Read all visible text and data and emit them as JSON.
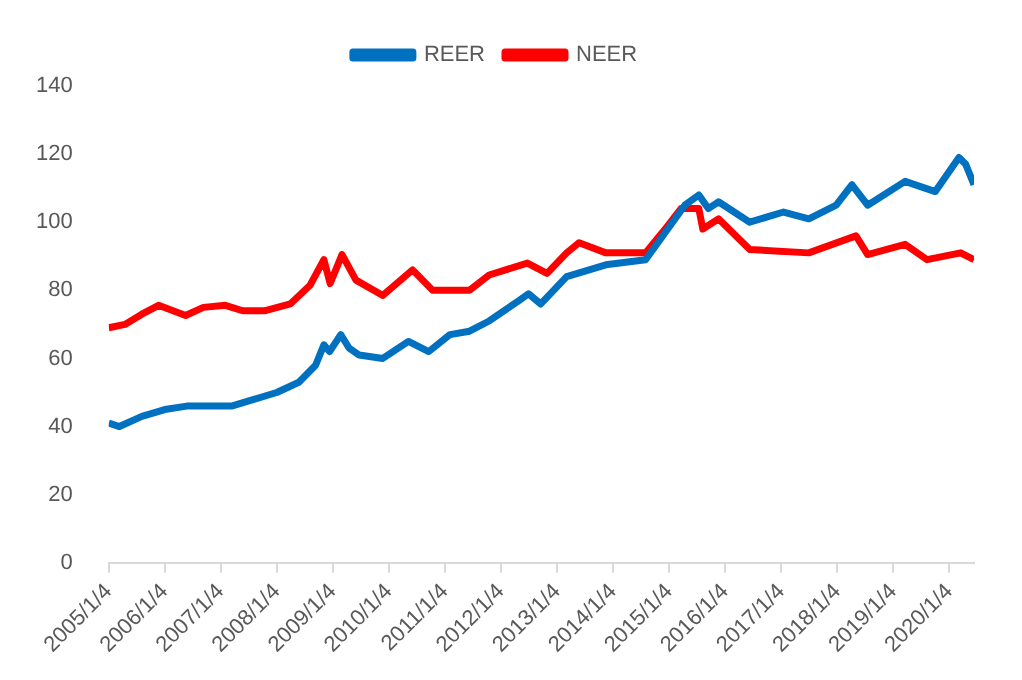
{
  "chart_data": {
    "type": "line",
    "legend": "top",
    "grid": false,
    "marker": "none",
    "line_style": "solid",
    "xlim": [
      "2005-01-04",
      "2020-06-12"
    ],
    "xticks": [
      {
        "value": "2005-01-04",
        "label": "2005/1/4"
      },
      {
        "value": "2006-01-04",
        "label": "2006/1/4"
      },
      {
        "value": "2007-01-04",
        "label": "2007/1/4"
      },
      {
        "value": "2008-01-04",
        "label": "2008/1/4"
      },
      {
        "value": "2009-01-04",
        "label": "2009/1/4"
      },
      {
        "value": "2010-01-04",
        "label": "2010/1/4"
      },
      {
        "value": "2011-01-04",
        "label": "2011/1/4"
      },
      {
        "value": "2012-01-04",
        "label": "2012/1/4"
      },
      {
        "value": "2013-01-04",
        "label": "2013/1/4"
      },
      {
        "value": "2014-01-04",
        "label": "2014/1/4"
      },
      {
        "value": "2015-01-04",
        "label": "2015/1/4"
      },
      {
        "value": "2016-01-04",
        "label": "2016/1/4"
      },
      {
        "value": "2017-01-04",
        "label": "2017/1/4"
      },
      {
        "value": "2018-01-04",
        "label": "2018/1/4"
      },
      {
        "value": "2019-01-04",
        "label": "2019/1/4"
      },
      {
        "value": "2020-01-04",
        "label": "2020/1/4"
      }
    ],
    "ylim": [
      0,
      140
    ],
    "yticks": [
      0,
      20,
      40,
      60,
      80,
      100,
      120,
      140
    ],
    "series": [
      {
        "name": "REER",
        "color": "#0070c0",
        "x": [
          "2005-01-04",
          "2005-03-15",
          "2005-08-08",
          "2006-01-04",
          "2006-05-27",
          "2006-10-19",
          "2007-03-15",
          "2007-08-08",
          "2008-01-04",
          "2008-05-27",
          "2008-09-13",
          "2008-11-06",
          "2008-12-13",
          "2009-02-24",
          "2009-04-20",
          "2009-06-24",
          "2009-11-25",
          "2010-05-11",
          "2010-09-20",
          "2011-02-06",
          "2011-06-13",
          "2011-10-19",
          "2012-04-30",
          "2012-07-01",
          "2012-09-19",
          "2013-03-07",
          "2013-11-17",
          "2014-08-03",
          "2014-12-09",
          "2015-04-16",
          "2015-07-16",
          "2015-09-16",
          "2015-11-21",
          "2016-06-12",
          "2017-01-18",
          "2017-07-02",
          "2017-12-27",
          "2018-04-09",
          "2018-07-20",
          "2019-03-21",
          "2019-10-04",
          "2020-03-06",
          "2020-04-19",
          "2020-06-12"
        ],
        "values": [
          41,
          40,
          43,
          45,
          46,
          46,
          46,
          48,
          50,
          53,
          58,
          64,
          62,
          67,
          63,
          61,
          60,
          65,
          62,
          67,
          68,
          71,
          77,
          79,
          76,
          84,
          87.5,
          89,
          97,
          105,
          108,
          104,
          106,
          100,
          103,
          101,
          105,
          111,
          105,
          112,
          109,
          119,
          117,
          111
        ]
      },
      {
        "name": "NEER",
        "color": "#ff0000",
        "x": [
          "2005-01-04",
          "2005-04-20",
          "2005-08-08",
          "2005-11-25",
          "2006-05-20",
          "2006-09-13",
          "2007-02-03",
          "2007-05-27",
          "2007-10-16",
          "2008-04-01",
          "2008-08-08",
          "2008-11-06",
          "2008-12-17",
          "2009-03-04",
          "2009-06-03",
          "2009-11-25",
          "2010-06-07",
          "2010-10-16",
          "2011-06-13",
          "2011-10-19",
          "2012-06-24",
          "2012-10-30",
          "2013-03-07",
          "2013-05-27",
          "2013-11-17",
          "2014-08-03",
          "2014-12-09",
          "2015-03-22",
          "2015-07-16",
          "2015-08-11",
          "2015-11-21",
          "2016-06-12",
          "2017-07-02",
          "2018-05-05",
          "2018-07-20",
          "2019-03-21",
          "2019-08-11",
          "2020-03-17",
          "2020-06-12"
        ],
        "values": [
          69,
          70,
          73,
          75.6,
          72.6,
          75,
          75.6,
          74,
          74,
          76,
          81.5,
          89,
          82,
          90.5,
          83,
          78.5,
          86,
          80,
          80,
          84.5,
          88,
          85,
          91,
          94,
          91,
          91,
          98,
          104,
          104,
          98,
          101,
          92,
          91,
          96,
          90.5,
          93.5,
          89,
          91,
          89
        ]
      }
    ]
  }
}
